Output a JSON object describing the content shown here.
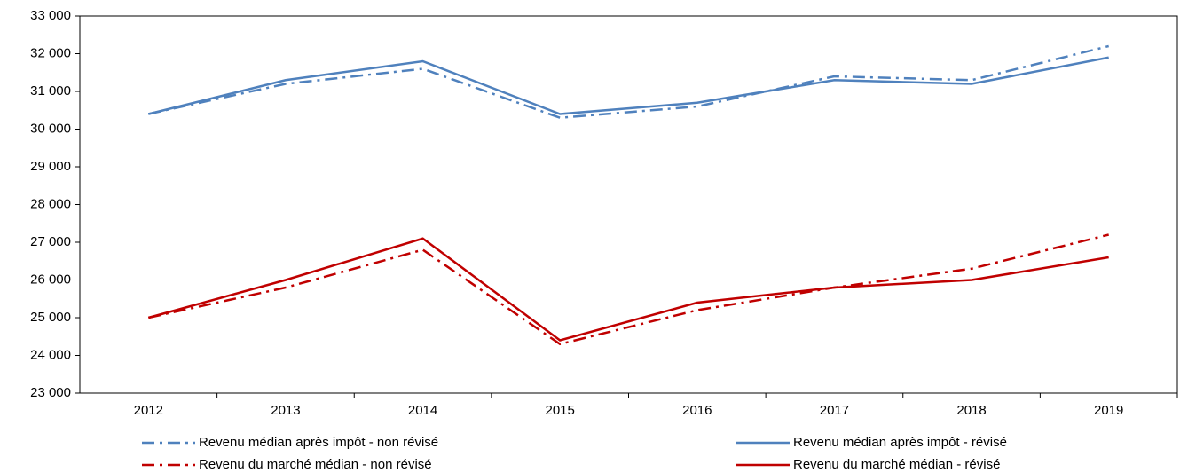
{
  "chart_data": {
    "type": "line",
    "categories": [
      "2012",
      "2013",
      "2014",
      "2015",
      "2016",
      "2017",
      "2018",
      "2019"
    ],
    "series": [
      {
        "name": "Revenu médian après impôt  - non révisé",
        "color": "#4f81bd",
        "style": "dash-dot",
        "values": [
          30400,
          31200,
          31600,
          30300,
          30600,
          31400,
          31300,
          32200
        ]
      },
      {
        "name": "Revenu médian après impôt  - révisé",
        "color": "#4f81bd",
        "style": "solid",
        "values": [
          30400,
          31300,
          31800,
          30400,
          30700,
          31300,
          31200,
          31900
        ]
      },
      {
        "name": "Revenu du marché médian - non révisé",
        "color": "#c00000",
        "style": "dash-dot",
        "values": [
          25000,
          25800,
          26800,
          24300,
          25200,
          25800,
          26300,
          27200
        ]
      },
      {
        "name": "Revenu du marché médian - révisé",
        "color": "#c00000",
        "style": "solid",
        "values": [
          25000,
          26000,
          27100,
          24400,
          25400,
          25800,
          26000,
          26600
        ]
      }
    ],
    "ylim": [
      23000,
      33000
    ],
    "yticks": [
      {
        "value": 23000,
        "label": "23 000"
      },
      {
        "value": 24000,
        "label": "24 000"
      },
      {
        "value": 25000,
        "label": "25 000"
      },
      {
        "value": 26000,
        "label": "26 000"
      },
      {
        "value": 27000,
        "label": "27 000"
      },
      {
        "value": 28000,
        "label": "28 000"
      },
      {
        "value": 29000,
        "label": "29 000"
      },
      {
        "value": 30000,
        "label": "30 000"
      },
      {
        "value": 31000,
        "label": "31 000"
      },
      {
        "value": 32000,
        "label": "32 000"
      },
      {
        "value": 33000,
        "label": "33 000"
      }
    ],
    "grid": false,
    "legend": "bottom"
  }
}
